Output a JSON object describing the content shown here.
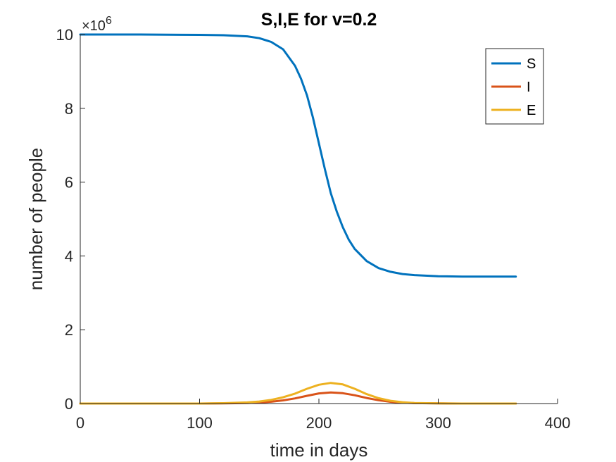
{
  "chart_data": {
    "type": "line",
    "title": "S,I,E for v=0.2",
    "xlabel": "time in days",
    "ylabel": "number of people",
    "xlim": [
      0,
      400
    ],
    "ylim": [
      0,
      10000000
    ],
    "xticks": [
      0,
      100,
      200,
      300,
      400
    ],
    "xtick_labels": [
      "0",
      "100",
      "200",
      "300",
      "400"
    ],
    "yticks": [
      0,
      2000000,
      4000000,
      6000000,
      8000000,
      10000000
    ],
    "ytick_labels": [
      "0",
      "2",
      "4",
      "6",
      "8",
      "10"
    ],
    "y_exponent_label": {
      "base": "×10",
      "exponent": "6"
    },
    "grid": false,
    "legend_position": "top-right",
    "series": [
      {
        "name": "S",
        "color": "#0072BD",
        "x": [
          0,
          50,
          100,
          120,
          140,
          150,
          160,
          170,
          180,
          185,
          190,
          195,
          200,
          205,
          210,
          215,
          220,
          225,
          230,
          240,
          250,
          260,
          270,
          280,
          300,
          320,
          340,
          365
        ],
        "y": [
          10000000,
          10000000,
          9990000,
          9980000,
          9950000,
          9900000,
          9800000,
          9600000,
          9150000,
          8800000,
          8350000,
          7750000,
          7050000,
          6350000,
          5700000,
          5200000,
          4780000,
          4440000,
          4190000,
          3860000,
          3670000,
          3570000,
          3510000,
          3480000,
          3450000,
          3440000,
          3440000,
          3440000
        ]
      },
      {
        "name": "I",
        "color": "#D95319",
        "x": [
          0,
          50,
          100,
          120,
          140,
          150,
          160,
          170,
          180,
          190,
          200,
          210,
          220,
          230,
          240,
          250,
          260,
          270,
          280,
          300,
          320,
          340,
          365
        ],
        "y": [
          0,
          0,
          0,
          5000,
          15000,
          28000,
          50000,
          85000,
          140000,
          210000,
          275000,
          300000,
          280000,
          225000,
          150000,
          90000,
          48000,
          25000,
          12000,
          3000,
          0,
          0,
          0
        ]
      },
      {
        "name": "E",
        "color": "#EDB120",
        "x": [
          0,
          50,
          100,
          120,
          140,
          150,
          160,
          170,
          180,
          190,
          200,
          210,
          220,
          230,
          240,
          250,
          260,
          270,
          280,
          300,
          320,
          340,
          365
        ],
        "y": [
          0,
          0,
          0,
          10000,
          30000,
          55000,
          100000,
          170000,
          270000,
          400000,
          510000,
          560000,
          520000,
          400000,
          255000,
          145000,
          75000,
          36000,
          16000,
          4000,
          0,
          0,
          0
        ]
      }
    ]
  }
}
